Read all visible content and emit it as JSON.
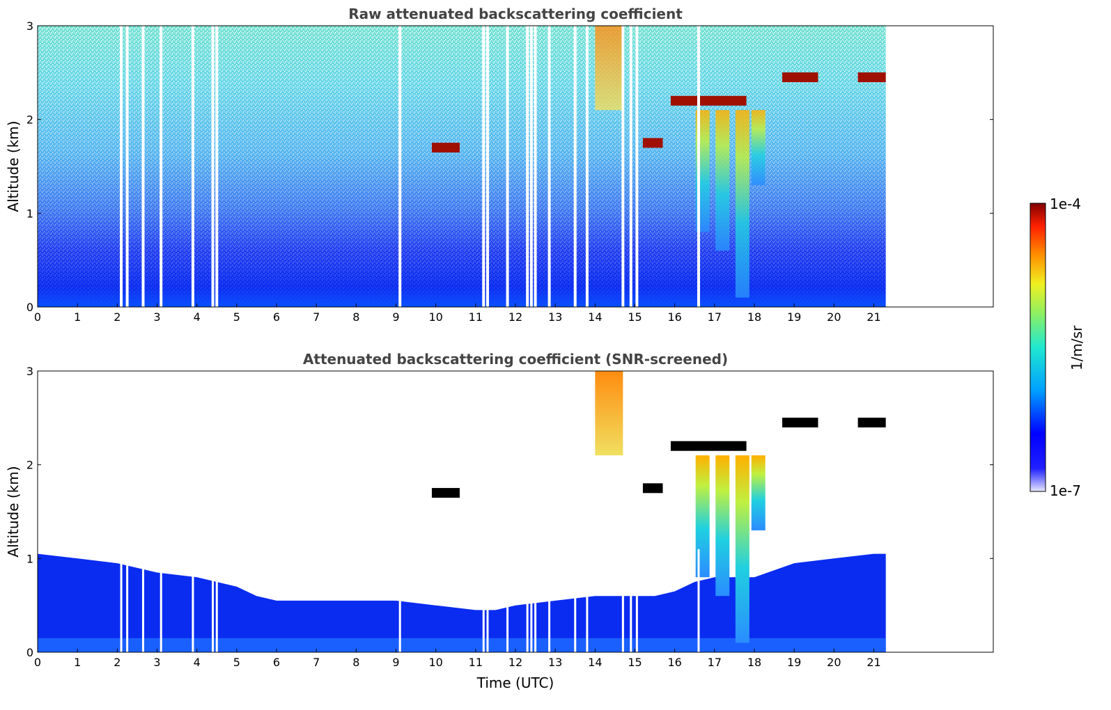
{
  "chart_data": [
    {
      "type": "heatmap",
      "title": "Raw attenuated backscattering coefficient",
      "xlabel": "",
      "ylabel": "Altitude (km)",
      "xlim": [
        0,
        24
      ],
      "ylim": [
        0,
        3
      ],
      "data_extent_x": [
        0,
        21.3
      ],
      "x_ticks": [
        0,
        1,
        2,
        3,
        4,
        5,
        6,
        7,
        8,
        9,
        10,
        11,
        12,
        13,
        14,
        15,
        16,
        17,
        18,
        19,
        20,
        21
      ],
      "y_ticks": [
        0,
        1,
        2
      ],
      "y_top_label": "3",
      "cloud_layers": [
        {
          "x_start": 9.9,
          "x_end": 10.6,
          "alt_km": 1.7
        },
        {
          "x_start": 15.2,
          "x_end": 15.7,
          "alt_km": 1.75
        },
        {
          "x_start": 15.9,
          "x_end": 17.8,
          "alt_km": 2.2
        },
        {
          "x_start": 18.7,
          "x_end": 19.6,
          "alt_km": 2.45
        },
        {
          "x_start": 20.6,
          "x_end": 21.3,
          "alt_km": 2.45
        }
      ],
      "precip_shafts": [
        {
          "x": 16.7,
          "bottom_km": 0.8
        },
        {
          "x": 17.2,
          "bottom_km": 0.6
        },
        {
          "x": 17.7,
          "bottom_km": 0.1
        },
        {
          "x": 18.1,
          "bottom_km": 1.3
        }
      ],
      "high_aerosol": {
        "x_start": 14.0,
        "x_end": 14.7,
        "alt_range_km": [
          2.1,
          3.0
        ]
      },
      "gaps": [
        2.1,
        2.25,
        2.65,
        3.1,
        3.9,
        4.4,
        4.5,
        9.1,
        11.2,
        11.3,
        11.8,
        12.3,
        12.4,
        12.5,
        12.85,
        13.5,
        13.8,
        14.7,
        14.9,
        15.05,
        16.6
      ]
    },
    {
      "type": "heatmap",
      "title": "Attenuated backscattering coefficient (SNR-screened)",
      "xlabel": "Time (UTC)",
      "ylabel": "Altitude (km)",
      "xlim": [
        0,
        24
      ],
      "ylim": [
        0,
        3
      ],
      "data_extent_x": [
        0,
        21.3
      ],
      "x_ticks": [
        0,
        1,
        2,
        3,
        4,
        5,
        6,
        7,
        8,
        9,
        10,
        11,
        12,
        13,
        14,
        15,
        16,
        17,
        18,
        19,
        20,
        21
      ],
      "y_ticks": [
        0,
        1,
        2
      ],
      "y_top_label": "3",
      "boundary_layer_top_km": [
        [
          0,
          1.05
        ],
        [
          1,
          1.0
        ],
        [
          2,
          0.95
        ],
        [
          3,
          0.85
        ],
        [
          4,
          0.8
        ],
        [
          5,
          0.7
        ],
        [
          5.5,
          0.6
        ],
        [
          6,
          0.55
        ],
        [
          7,
          0.55
        ],
        [
          8,
          0.55
        ],
        [
          9,
          0.55
        ],
        [
          10,
          0.5
        ],
        [
          11,
          0.45
        ],
        [
          11.5,
          0.45
        ],
        [
          12,
          0.5
        ],
        [
          13,
          0.55
        ],
        [
          14,
          0.6
        ],
        [
          15,
          0.6
        ],
        [
          15.5,
          0.6
        ],
        [
          16,
          0.65
        ],
        [
          16.5,
          0.75
        ],
        [
          17,
          0.8
        ],
        [
          18,
          0.8
        ],
        [
          19,
          0.95
        ],
        [
          20,
          1.0
        ],
        [
          21,
          1.05
        ],
        [
          21.3,
          1.05
        ]
      ]
    }
  ],
  "colorbar": {
    "label": "1/m/sr",
    "max_label": "1e-4",
    "min_label": "1e-7",
    "scale": "log",
    "colormap": "jet"
  }
}
